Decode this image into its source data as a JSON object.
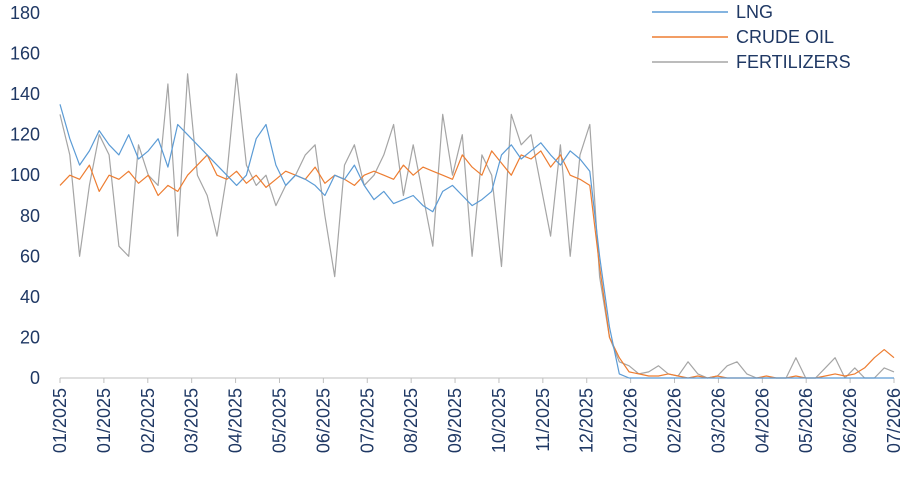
{
  "chart_data": {
    "type": "line",
    "title": "",
    "xlabel": "",
    "ylabel": "",
    "ylim": [
      0,
      180
    ],
    "y_ticks": [
      0,
      20,
      40,
      60,
      80,
      100,
      120,
      140,
      160,
      180
    ],
    "x_tick_labels": [
      "01/2025",
      "01/2025",
      "02/2025",
      "03/2025",
      "04/2025",
      "05/2025",
      "06/2025",
      "07/2025",
      "08/2025",
      "09/2025",
      "10/2025",
      "11/2025",
      "12/2025",
      "01/2026",
      "02/2026",
      "03/2026",
      "04/2026",
      "05/2026",
      "06/2026",
      "07/2026"
    ],
    "grid": false,
    "legend_position": "top-right",
    "x_interval": "biweekly",
    "series": [
      {
        "name": "LNG",
        "color": "#5b9bd5",
        "values": [
          135,
          118,
          105,
          112,
          122,
          115,
          110,
          120,
          108,
          112,
          118,
          104,
          125,
          120,
          115,
          110,
          105,
          100,
          95,
          100,
          118,
          125,
          105,
          95,
          100,
          98,
          95,
          90,
          100,
          98,
          105,
          95,
          88,
          92,
          86,
          88,
          90,
          85,
          82,
          92,
          95,
          90,
          85,
          88,
          92,
          110,
          115,
          108,
          112,
          116,
          110,
          105,
          112,
          108,
          102,
          60,
          25,
          2,
          0,
          0,
          0,
          0,
          0,
          0,
          0,
          0,
          0,
          0,
          0,
          0,
          0,
          0,
          0,
          0,
          0,
          0,
          0,
          0,
          0,
          0,
          0,
          0,
          0,
          0,
          0,
          0
        ]
      },
      {
        "name": "CRUDE OIL",
        "color": "#ed7d31",
        "values": [
          95,
          100,
          98,
          105,
          92,
          100,
          98,
          102,
          96,
          100,
          90,
          95,
          92,
          100,
          105,
          110,
          100,
          98,
          102,
          96,
          100,
          94,
          98,
          102,
          100,
          98,
          104,
          96,
          100,
          98,
          95,
          100,
          102,
          100,
          98,
          105,
          100,
          104,
          102,
          100,
          98,
          110,
          104,
          100,
          112,
          106,
          100,
          110,
          108,
          112,
          104,
          110,
          100,
          98,
          95,
          55,
          20,
          10,
          3,
          2,
          1,
          1,
          2,
          1,
          0,
          1,
          0,
          1,
          0,
          0,
          0,
          0,
          1,
          0,
          0,
          1,
          0,
          0,
          1,
          2,
          1,
          2,
          5,
          10,
          14,
          10
        ]
      },
      {
        "name": "FERTILIZERS",
        "color": "#a5a5a5",
        "values": [
          130,
          110,
          60,
          95,
          120,
          110,
          65,
          60,
          115,
          100,
          95,
          145,
          70,
          150,
          100,
          90,
          70,
          100,
          150,
          105,
          95,
          100,
          85,
          95,
          100,
          110,
          115,
          80,
          50,
          105,
          115,
          95,
          100,
          110,
          125,
          90,
          115,
          90,
          65,
          130,
          100,
          120,
          60,
          110,
          100,
          55,
          130,
          115,
          120,
          95,
          70,
          115,
          60,
          110,
          125,
          50,
          20,
          8,
          6,
          2,
          3,
          6,
          2,
          1,
          8,
          2,
          0,
          1,
          6,
          8,
          2,
          0,
          0,
          0,
          0,
          10,
          0,
          0,
          5,
          10,
          0,
          5,
          0,
          0,
          5,
          3
        ]
      }
    ]
  }
}
